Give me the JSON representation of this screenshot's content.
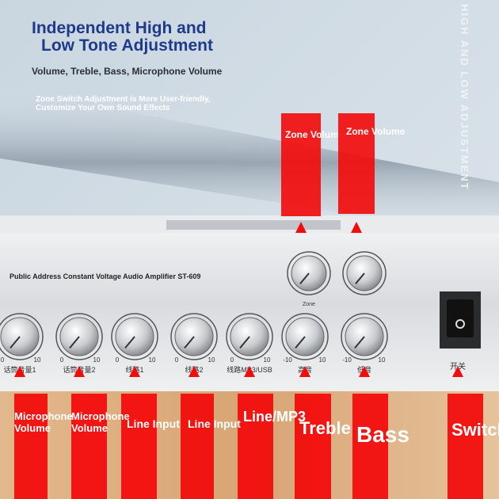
{
  "header": {
    "title_lines": [
      "Independent High and",
      "Low Tone Adjustment"
    ],
    "subtitle": "Volume, Treble, Bass, Microphone Volume",
    "description_lines": [
      "Zone Switch Adjustment is More User-friendly,",
      "Customize Your Own Sound Effects"
    ],
    "side_text": "HIGH AND LOW ADJUSTMENT"
  },
  "panel": {
    "model": "Public Address Constant Voltage Audio Amplifier ST-609",
    "zone_caption": "Zone"
  },
  "zone_callouts": [
    "Zone Volume",
    "Zone Volume"
  ],
  "knobs": [
    {
      "label": "话筒音量1",
      "min": "0",
      "max": "10"
    },
    {
      "label": "话筒音量2",
      "min": "0",
      "max": "10"
    },
    {
      "label": "线路1",
      "min": "0",
      "max": "10"
    },
    {
      "label": "线路2",
      "min": "0",
      "max": "10"
    },
    {
      "label": "线路MP3/USB",
      "min": "0",
      "max": "10"
    },
    {
      "label": "高音",
      "min": "-10",
      "max": "10"
    },
    {
      "label": "低音",
      "min": "-10",
      "max": "10"
    }
  ],
  "switch_label": "开关",
  "callouts": [
    [
      "Microphone",
      "Volume"
    ],
    [
      "Microphone",
      "Volume"
    ],
    [
      "Line Input"
    ],
    [
      "Line Input"
    ],
    [
      "Line/MP3"
    ],
    [
      "Treble"
    ],
    [
      "Bass"
    ],
    [
      "Switch"
    ]
  ]
}
